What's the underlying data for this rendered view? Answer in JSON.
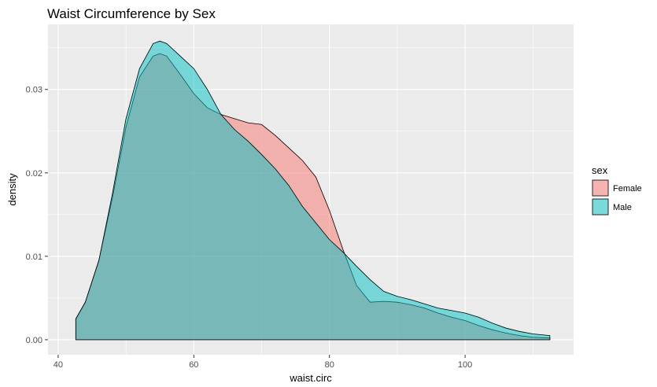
{
  "chart_data": {
    "type": "area",
    "title": "Waist Circumference by Sex",
    "xlabel": "waist.circ",
    "ylabel": "density",
    "xlim": [
      38.5,
      116
    ],
    "ylim": [
      -0.0018,
      0.0378
    ],
    "x_ticks": [
      40,
      60,
      80,
      100
    ],
    "x_tick_labels": [
      "40",
      "60",
      "80",
      "100"
    ],
    "y_ticks": [
      0.0,
      0.01,
      0.02,
      0.03
    ],
    "y_tick_labels": [
      "0.00",
      "0.01",
      "0.02",
      "0.03"
    ],
    "grid": true,
    "legend": {
      "title": "sex",
      "position": "right"
    },
    "series": [
      {
        "name": "Female",
        "color": "#F8766D",
        "x": [
          42.6,
          44,
          46,
          48,
          50,
          52,
          54,
          55,
          56,
          58,
          60,
          62,
          64,
          66,
          68,
          70,
          72,
          74,
          76,
          78,
          80,
          82,
          84,
          86,
          88,
          90,
          92,
          94,
          96,
          98,
          100,
          102,
          104,
          106,
          108,
          110,
          112.5
        ],
        "values": [
          0.0025,
          0.0045,
          0.0095,
          0.017,
          0.0255,
          0.0315,
          0.034,
          0.0343,
          0.034,
          0.0318,
          0.0295,
          0.0278,
          0.027,
          0.0265,
          0.026,
          0.0258,
          0.0245,
          0.023,
          0.0215,
          0.0195,
          0.0155,
          0.0108,
          0.0065,
          0.0045,
          0.0046,
          0.0045,
          0.0042,
          0.0038,
          0.0032,
          0.0027,
          0.0023,
          0.0017,
          0.0012,
          0.0008,
          0.0005,
          0.0003,
          0.0002
        ]
      },
      {
        "name": "Male",
        "color": "#00BFC4",
        "x": [
          42.6,
          44,
          46,
          48,
          50,
          52,
          54,
          55,
          56,
          58,
          60,
          62,
          64,
          66,
          68,
          70,
          72,
          74,
          76,
          78,
          80,
          82,
          84,
          86,
          88,
          90,
          92,
          94,
          96,
          98,
          100,
          102,
          104,
          106,
          108,
          110,
          112.5
        ],
        "values": [
          0.0025,
          0.0045,
          0.0095,
          0.0175,
          0.0265,
          0.0325,
          0.0355,
          0.0358,
          0.0355,
          0.034,
          0.0325,
          0.03,
          0.027,
          0.0252,
          0.0238,
          0.0222,
          0.0205,
          0.0185,
          0.016,
          0.014,
          0.012,
          0.0105,
          0.0088,
          0.0072,
          0.0058,
          0.0052,
          0.0048,
          0.0043,
          0.0038,
          0.0035,
          0.0032,
          0.0027,
          0.002,
          0.0014,
          0.001,
          0.0007,
          0.0005
        ]
      }
    ]
  }
}
